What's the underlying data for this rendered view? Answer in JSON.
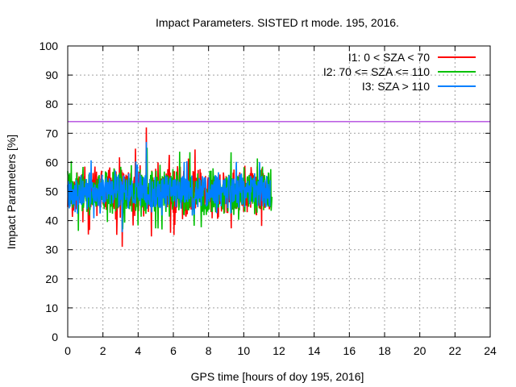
{
  "chart_data": {
    "type": "line",
    "title": "Impact Parameters. SISTED rt mode. 195, 2016.",
    "xlabel": "GPS time [hours of doy 195, 2016]",
    "ylabel": "Impact Parameters [%]",
    "xlim": [
      0,
      24
    ],
    "ylim": [
      0,
      100
    ],
    "xticks": [
      0,
      2,
      4,
      6,
      8,
      10,
      12,
      14,
      16,
      18,
      20,
      22,
      24
    ],
    "yticks": [
      0,
      10,
      20,
      30,
      40,
      50,
      60,
      70,
      80,
      90,
      100
    ],
    "grid": true,
    "legend_position": "top-right",
    "reference_line": {
      "y": 74,
      "color": "#9400d3"
    },
    "series": [
      {
        "name": "I1: 0 < SZA < 70",
        "color": "#ff0000",
        "x_range": [
          0,
          11.5
        ],
        "center": 50,
        "typical_min": 40,
        "typical_max": 60,
        "peak_max": 72,
        "peak_min": 31
      },
      {
        "name": "I2: 70 <= SZA <= 110",
        "color": "#00c000",
        "x_range": [
          0,
          11.6
        ],
        "center": 50,
        "typical_min": 41,
        "typical_max": 59,
        "peak_max": 65,
        "peak_min": 37
      },
      {
        "name": "I3: SZA > 110",
        "color": "#0080ff",
        "x_range": [
          0,
          11.5
        ],
        "center": 50,
        "typical_min": 43,
        "typical_max": 57,
        "peak_max": 67,
        "peak_min": 36
      }
    ]
  }
}
